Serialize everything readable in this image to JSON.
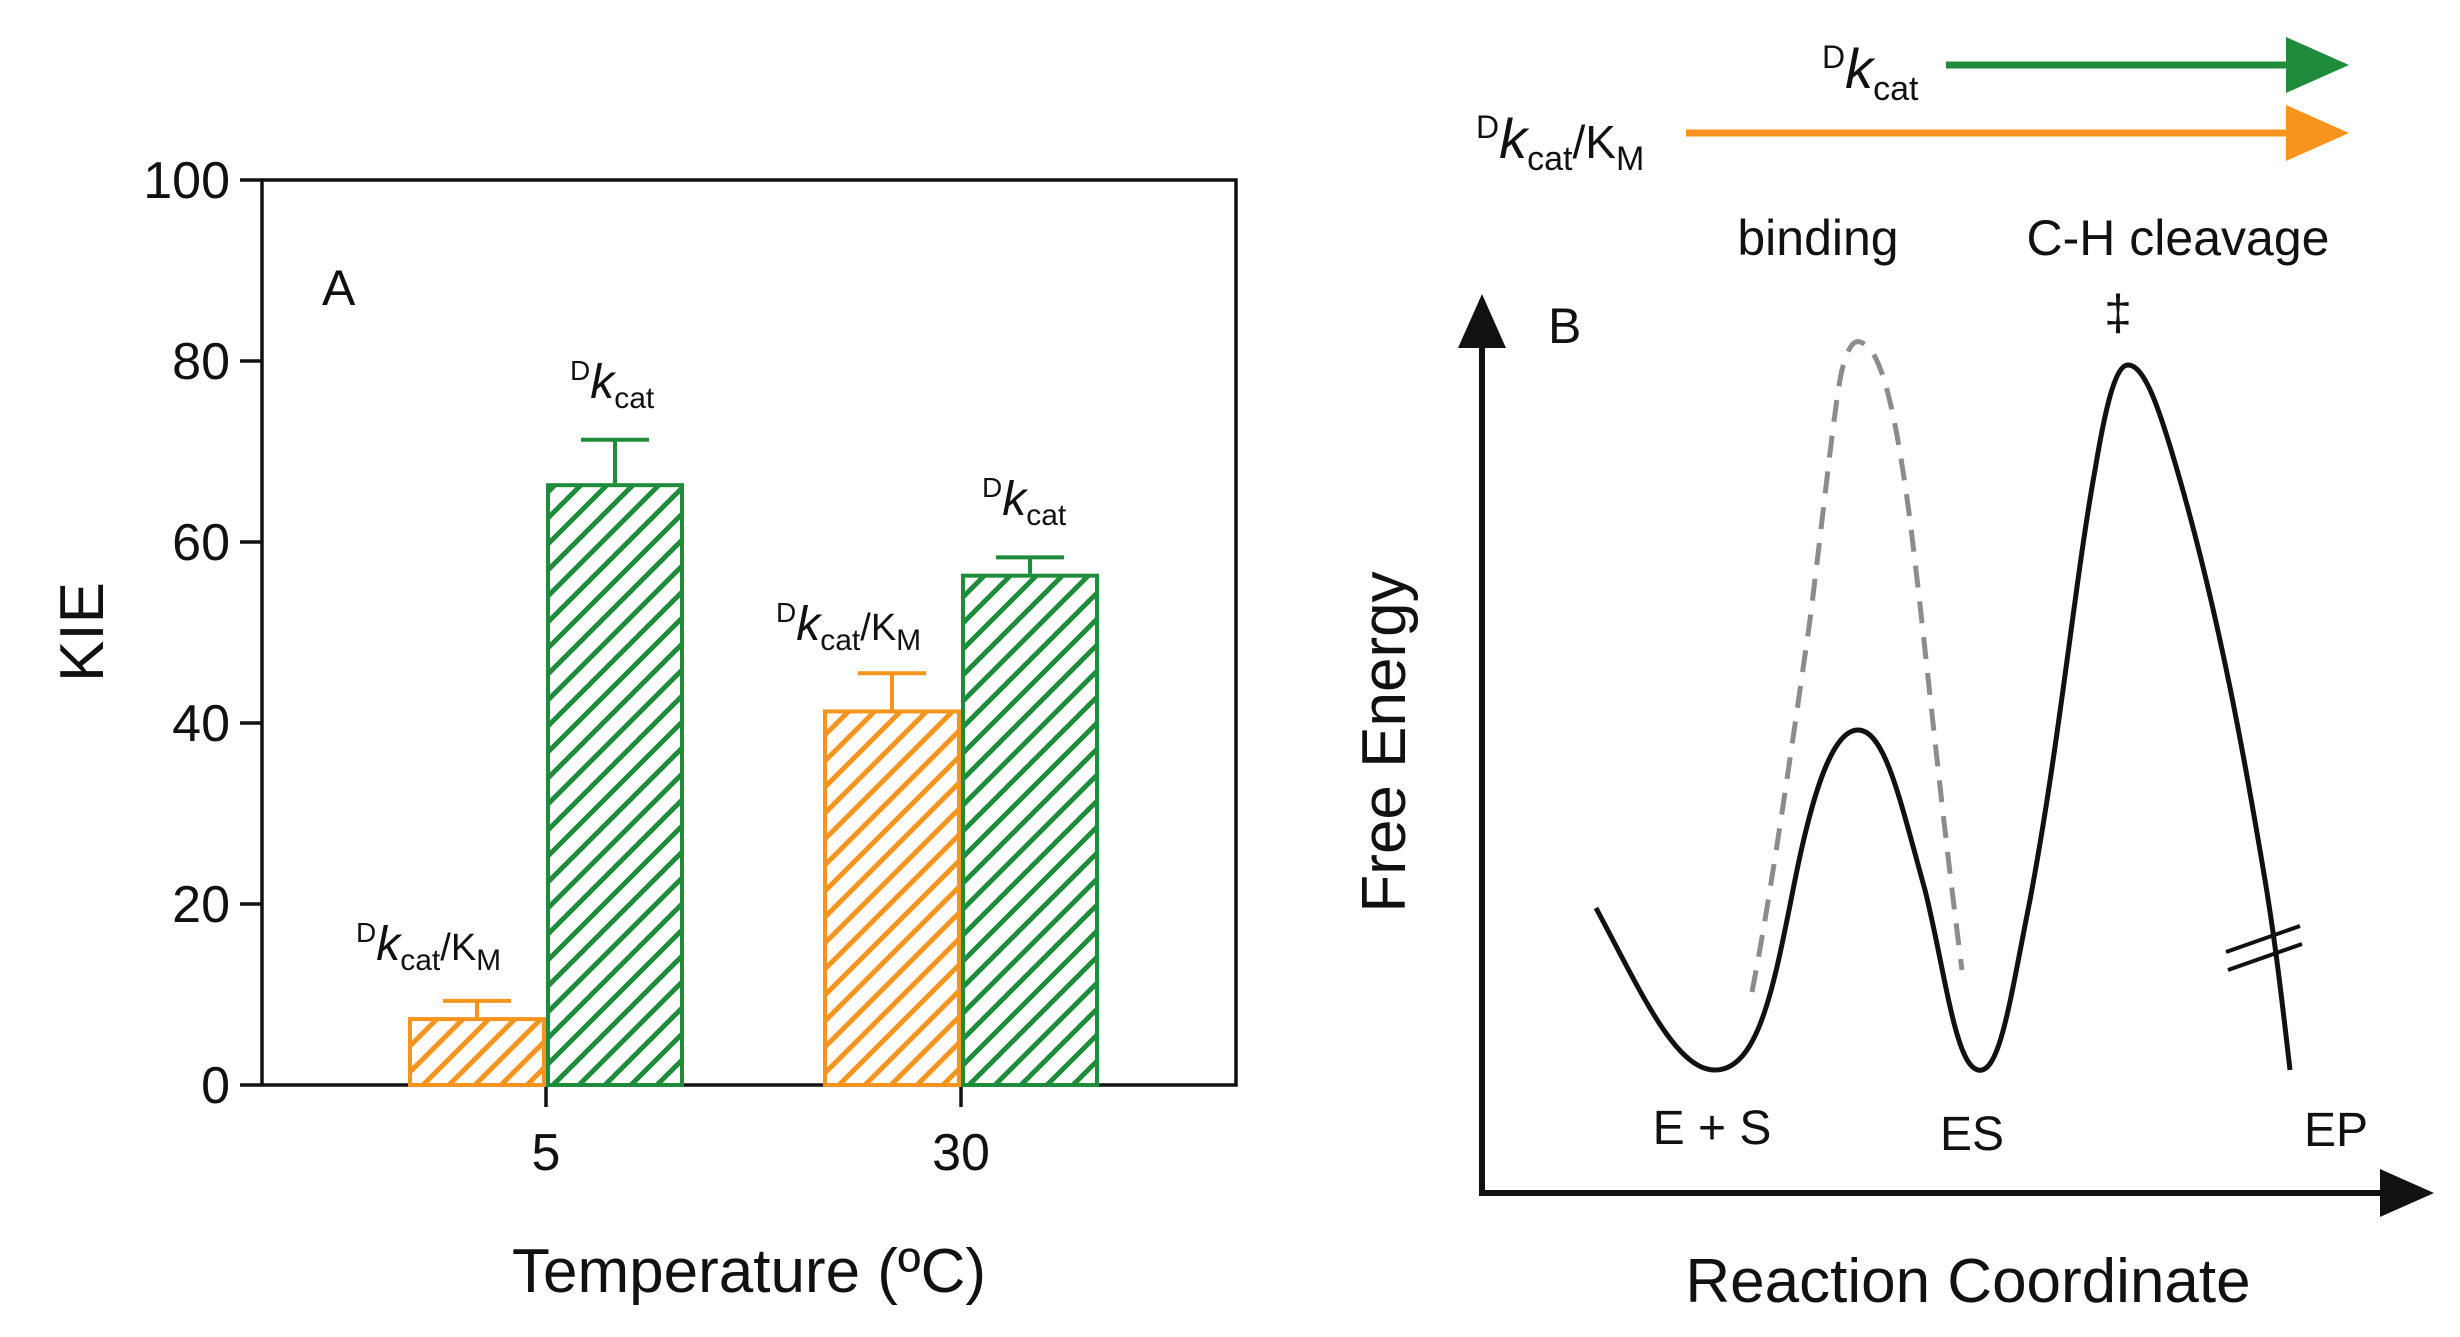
{
  "colors": {
    "orange": "#F7941D",
    "green": "#1E8C3A",
    "axis": "#111111",
    "dashed": "#8C8C8C"
  },
  "chart_data": [
    {
      "type": "bar",
      "panel": "A",
      "xlabel": "Temperature (ºC)",
      "ylabel": "KIE",
      "ylim": [
        0,
        100
      ],
      "yticks": [
        "0",
        "20",
        "40",
        "60",
        "80",
        "100"
      ],
      "categories": [
        "5",
        "30"
      ],
      "series": [
        {
          "name": "Dkcat/KM",
          "label": {
            "sup": "D",
            "main": "k",
            "sub": "cat",
            "tail": "/K",
            "tail_sub": "M"
          },
          "color": "orange",
          "hatch": "diagonal",
          "values": [
            7.5,
            41.5
          ],
          "errors": [
            1.8,
            4.0
          ]
        },
        {
          "name": "Dkcat",
          "label": {
            "sup": "D",
            "main": "k",
            "sub": "cat"
          },
          "color": "green",
          "hatch": "diagonal",
          "values": [
            66.5,
            56.5
          ],
          "errors": [
            4.8,
            1.8
          ]
        }
      ]
    },
    {
      "type": "diagram",
      "panel": "B",
      "xlabel": "Reaction Coordinate",
      "ylabel": "Free Energy",
      "states": [
        "E + S",
        "ES",
        "EP"
      ],
      "stages": [
        "binding",
        "C-H cleavage"
      ],
      "transition_state_symbol": "‡",
      "arrows": [
        {
          "label": {
            "sup": "D",
            "main": "k",
            "sub": "cat"
          },
          "color": "green",
          "span": "C-H cleavage"
        },
        {
          "label": {
            "sup": "D",
            "main": "k",
            "sub": "cat",
            "tail": "/K",
            "tail_sub": "M"
          },
          "color": "orange",
          "span": "binding + C-H cleavage"
        }
      ]
    }
  ]
}
